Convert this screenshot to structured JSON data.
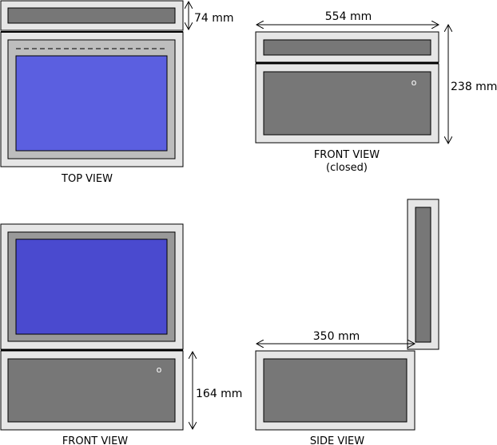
{
  "dimensions": {
    "depth_top": "74 mm",
    "width": "554 mm",
    "height_closed": "238 mm",
    "height_open": "164 mm",
    "side_depth": "350 mm"
  },
  "views": {
    "top": "TOP VIEW",
    "front_closed": "FRONT VIEW",
    "front_closed_sub": "(closed)",
    "front_open": "FRONT VIEW",
    "side": "SIDE VIEW"
  },
  "indicator": "o",
  "colors": {
    "frame_light": "#e6e6e6",
    "panel_gray": "#777777",
    "bezel_gray": "#bdbdbd",
    "bezel_dark": "#999999",
    "screen_top": "#5b5fe0",
    "screen_front": "#4a4acf"
  }
}
